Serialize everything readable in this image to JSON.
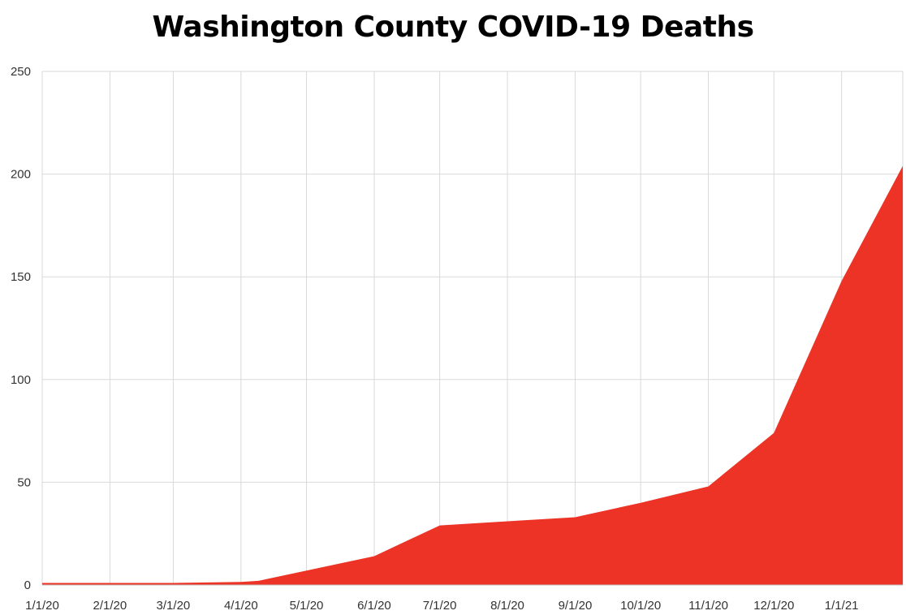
{
  "chart_data": {
    "type": "area",
    "title": "Washington County COVID-19 Deaths",
    "xlabel": "",
    "ylabel": "",
    "x_tick_labels": [
      "1/1/20",
      "2/1/20",
      "3/1/20",
      "4/1/20",
      "5/1/20",
      "6/1/20",
      "7/1/20",
      "8/1/20",
      "9/1/20",
      "10/1/20",
      "11/1/20",
      "12/1/20",
      "1/1/21"
    ],
    "y_tick_labels": [
      "0",
      "50",
      "100",
      "150",
      "200",
      "250"
    ],
    "ylim": [
      0,
      250
    ],
    "xlim": [
      "2020-01-01",
      "2021-01-29"
    ],
    "grid": true,
    "color": "#ec3326",
    "series": [
      {
        "x": [
          "2020-01-01",
          "2020-02-01",
          "2020-03-01",
          "2020-04-01",
          "2020-04-09",
          "2020-05-01",
          "2020-06-01",
          "2020-07-01",
          "2020-08-01",
          "2020-09-01",
          "2020-10-01",
          "2020-11-01",
          "2020-12-01",
          "2021-01-01",
          "2021-01-29"
        ],
        "y": [
          1,
          1,
          1,
          1.5,
          2,
          7,
          14,
          29,
          31,
          33,
          40,
          48,
          74,
          148,
          204
        ]
      }
    ]
  }
}
